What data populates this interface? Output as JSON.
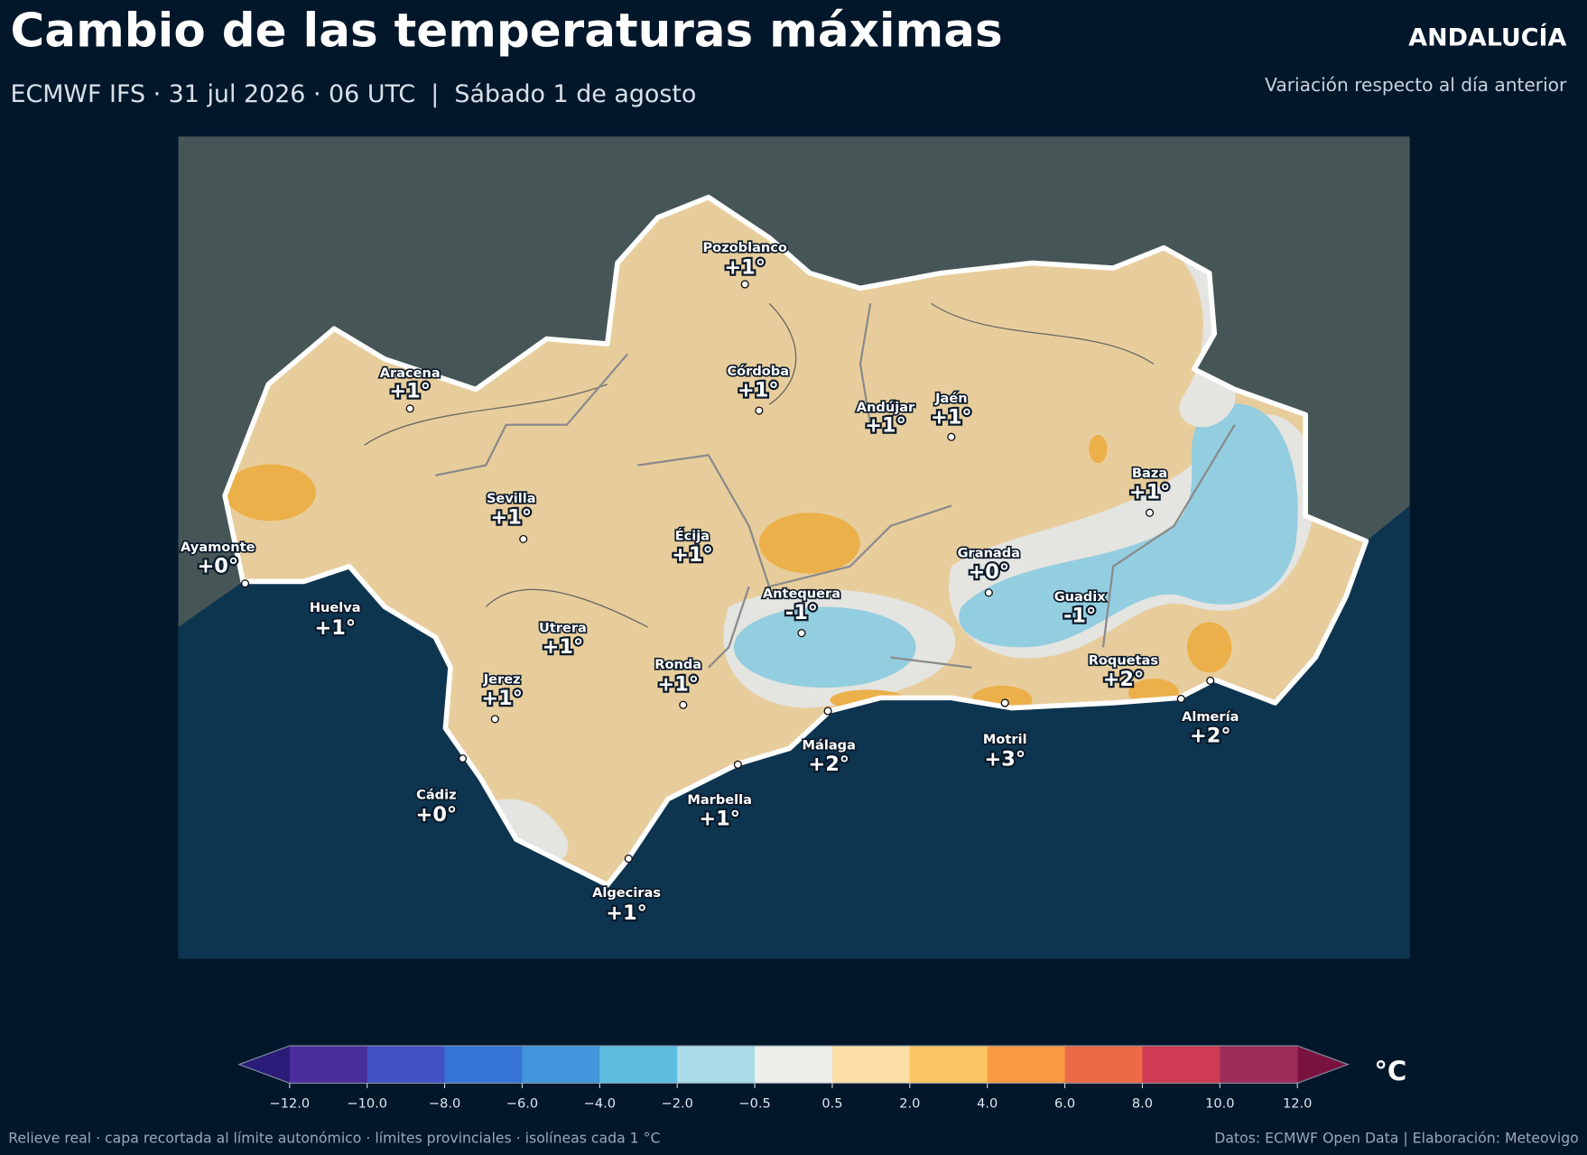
{
  "header": {
    "title": "Cambio de las temperaturas máximas",
    "subtitle": "ECMWF IFS · 31 jul 2026 · 06 UTC  |  Sábado 1 de agosto",
    "region": "ANDALUCÍA",
    "description": "Variación respecto al día anterior"
  },
  "cities": [
    {
      "name": "Pozoblanco",
      "label": "+1°"
    },
    {
      "name": "Aracena",
      "label": "+1°"
    },
    {
      "name": "Córdoba",
      "label": "+1°"
    },
    {
      "name": "Andújar",
      "label": "+1°"
    },
    {
      "name": "Jaén",
      "label": "+1°"
    },
    {
      "name": "Baza",
      "label": "+1°"
    },
    {
      "name": "Sevilla",
      "label": "+1°"
    },
    {
      "name": "Écija",
      "label": "+1°"
    },
    {
      "name": "Ayamonte",
      "label": "+0°"
    },
    {
      "name": "Granada",
      "label": "+0°"
    },
    {
      "name": "Huelva",
      "label": "+1°"
    },
    {
      "name": "Antequera",
      "label": "-1°"
    },
    {
      "name": "Guadix",
      "label": "-1°"
    },
    {
      "name": "Utrera",
      "label": "+1°"
    },
    {
      "name": "Ronda",
      "label": "+1°"
    },
    {
      "name": "Jerez",
      "label": "+1°"
    },
    {
      "name": "Roquetas",
      "label": "+2°"
    },
    {
      "name": "Almería",
      "label": "+2°"
    },
    {
      "name": "Málaga",
      "label": "+2°"
    },
    {
      "name": "Motril",
      "label": "+3°"
    },
    {
      "name": "Cádiz",
      "label": "+0°"
    },
    {
      "name": "Marbella",
      "label": "+1°"
    },
    {
      "name": "Algeciras",
      "label": "+1°"
    }
  ],
  "colorbar": {
    "unit": "°C",
    "under_color": "#2c1c7a",
    "over_color": "#7a1240",
    "colors": [
      "#4a2f9c",
      "#4352c4",
      "#3574d6",
      "#4196dc",
      "#5cbddf",
      "#aadcea",
      "#eeeeea",
      "#fde0a8",
      "#fcc462",
      "#f79a42",
      "#ec6a48",
      "#cf3b52",
      "#9c2c58"
    ],
    "ticks": [
      {
        "value": -12,
        "label": "−12.0"
      },
      {
        "value": -10,
        "label": "−10.0"
      },
      {
        "value": -8,
        "label": "−8.0"
      },
      {
        "value": -6,
        "label": "−6.0"
      },
      {
        "value": -4,
        "label": "−4.0"
      },
      {
        "value": -2,
        "label": "−2.0"
      },
      {
        "value": -0.5,
        "label": "−0.5"
      },
      {
        "value": 0.5,
        "label": "0.5"
      },
      {
        "value": 2,
        "label": "2.0"
      },
      {
        "value": 4,
        "label": "4.0"
      },
      {
        "value": 6,
        "label": "6.0"
      },
      {
        "value": 8,
        "label": "8.0"
      },
      {
        "value": 10,
        "label": "10.0"
      },
      {
        "value": 12,
        "label": "12.0"
      }
    ]
  },
  "footer": {
    "left": "Relieve real · capa recortada al límite autonómico · límites provinciales · isolíneas cada 1 °C",
    "right": "Datos: ECMWF Open Data | Elaboración: Meteovigo"
  }
}
